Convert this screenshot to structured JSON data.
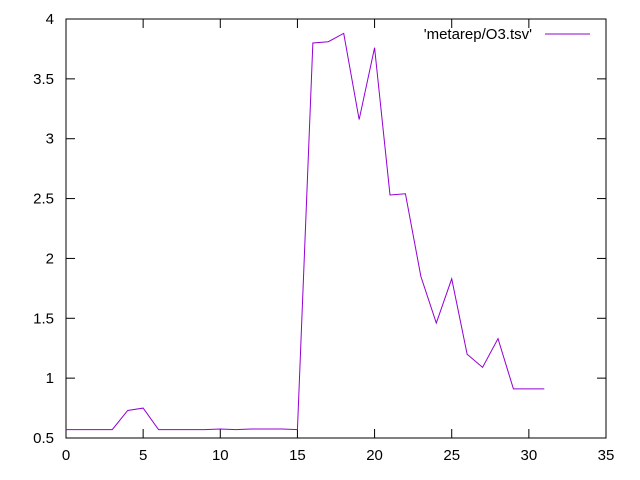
{
  "chart_data": {
    "type": "line",
    "xlim": [
      0,
      35
    ],
    "ylim": [
      0.5,
      4
    ],
    "x_ticks": [
      0,
      5,
      10,
      15,
      20,
      25,
      30,
      35
    ],
    "y_ticks": [
      0.5,
      1,
      1.5,
      2,
      2.5,
      3,
      3.5,
      4
    ],
    "x_tick_labels": [
      "0",
      "5",
      "10",
      "15",
      "20",
      "25",
      "30",
      "35"
    ],
    "y_tick_labels": [
      "0.5",
      "1",
      "1.5",
      "2",
      "2.5",
      "3",
      "3.5",
      "4"
    ],
    "grid": false,
    "legend_position": "top-right",
    "series": [
      {
        "name": "'metarep/O3.tsv'",
        "color": "#9400d3",
        "x": [
          0,
          1,
          2,
          3,
          4,
          5,
          6,
          7,
          8,
          9,
          10,
          11,
          12,
          13,
          14,
          15,
          16,
          17,
          18,
          19,
          20,
          21,
          22,
          23,
          24,
          25,
          26,
          27,
          28,
          29,
          30,
          31
        ],
        "y": [
          0.57,
          0.57,
          0.57,
          0.57,
          0.73,
          0.75,
          0.57,
          0.57,
          0.57,
          0.57,
          0.575,
          0.57,
          0.575,
          0.575,
          0.575,
          0.57,
          3.8,
          3.81,
          3.88,
          3.16,
          3.76,
          2.53,
          2.54,
          1.85,
          1.46,
          1.83,
          1.2,
          1.09,
          1.33,
          0.91,
          0.91,
          0.91
        ]
      }
    ]
  }
}
